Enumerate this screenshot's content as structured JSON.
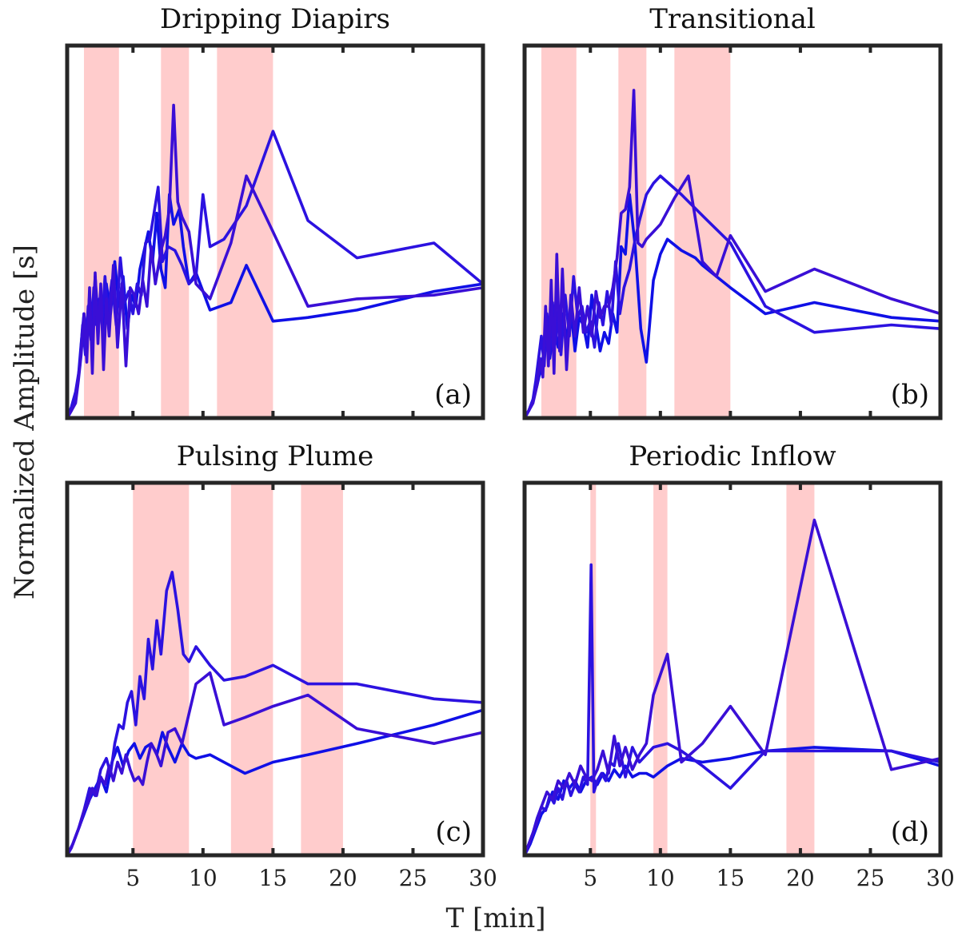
{
  "figure": {
    "ylabel": "Normalized Amplitude [s]",
    "xlabel": "T [min]"
  },
  "chart_data": [
    {
      "type": "line",
      "title": "Dripping Diapirs",
      "panel_label": "(a)",
      "xlim": [
        0.3,
        30
      ],
      "ylim": [
        0,
        1
      ],
      "xticks": [
        5,
        10,
        15,
        20,
        25,
        30
      ],
      "xticks_labeled": false,
      "yticks_labeled": false,
      "band_color": "#ffcccc",
      "line_colors": [
        "#1010e6",
        "#2c12e0",
        "#3a0fd6"
      ],
      "bands": [
        [
          1.5,
          4.0
        ],
        [
          7.0,
          9.0
        ],
        [
          11.0,
          15.0
        ]
      ],
      "series": [
        {
          "x": [
            0.3,
            0.6,
            0.9,
            1.1,
            1.3,
            1.5,
            1.7,
            1.9,
            2.1,
            2.3,
            2.5,
            2.7,
            2.9,
            3.1,
            3.4,
            3.7,
            4.0,
            4.3,
            4.6,
            4.9,
            5.2,
            5.5,
            5.8,
            6.1,
            6.4,
            6.7,
            7.0,
            7.3,
            7.6,
            7.9,
            8.3,
            8.6,
            9.0,
            9.5,
            10.5,
            12.0,
            13.1,
            15.0,
            17.5,
            21.0,
            26.5,
            30.0
          ],
          "y": [
            0.0,
            0.02,
            0.05,
            0.11,
            0.2,
            0.28,
            0.22,
            0.33,
            0.24,
            0.38,
            0.27,
            0.3,
            0.2,
            0.36,
            0.28,
            0.42,
            0.3,
            0.38,
            0.24,
            0.33,
            0.3,
            0.4,
            0.45,
            0.5,
            0.42,
            0.55,
            0.4,
            0.35,
            0.6,
            0.52,
            0.56,
            0.46,
            0.36,
            0.39,
            0.29,
            0.31,
            0.41,
            0.26,
            0.27,
            0.29,
            0.34,
            0.36
          ]
        },
        {
          "x": [
            0.3,
            0.6,
            0.9,
            1.2,
            1.4,
            1.6,
            1.8,
            2.0,
            2.2,
            2.4,
            2.6,
            2.8,
            3.0,
            3.2,
            3.5,
            3.8,
            4.1,
            4.4,
            4.7,
            5.0,
            5.3,
            5.6,
            5.9,
            6.2,
            6.5,
            6.8,
            7.1,
            7.5,
            8.0,
            8.5,
            9.0,
            9.5,
            10.0,
            10.5,
            11.5,
            13.1,
            15.0,
            17.5,
            21.0,
            26.5,
            30.0
          ],
          "y": [
            0.0,
            0.03,
            0.07,
            0.14,
            0.25,
            0.17,
            0.3,
            0.21,
            0.35,
            0.25,
            0.32,
            0.26,
            0.38,
            0.28,
            0.37,
            0.25,
            0.43,
            0.31,
            0.34,
            0.28,
            0.36,
            0.33,
            0.47,
            0.48,
            0.55,
            0.62,
            0.42,
            0.46,
            0.45,
            0.41,
            0.36,
            0.38,
            0.6,
            0.46,
            0.48,
            0.57,
            0.77,
            0.53,
            0.43,
            0.47,
            0.36
          ]
        },
        {
          "x": [
            0.3,
            0.6,
            0.9,
            1.1,
            1.3,
            1.5,
            1.7,
            1.9,
            2.1,
            2.3,
            2.5,
            2.7,
            2.9,
            3.1,
            3.3,
            3.6,
            3.9,
            4.2,
            4.5,
            4.8,
            5.1,
            5.4,
            5.7,
            6.0,
            6.3,
            6.6,
            7.0,
            7.3,
            7.6,
            7.9,
            8.2,
            8.5,
            9.0,
            9.5,
            10.5,
            12.0,
            13.1,
            15.0,
            17.5,
            21.0,
            26.5,
            30.0
          ],
          "y": [
            0.0,
            0.02,
            0.04,
            0.1,
            0.17,
            0.28,
            0.15,
            0.35,
            0.12,
            0.39,
            0.2,
            0.36,
            0.13,
            0.32,
            0.22,
            0.41,
            0.19,
            0.36,
            0.14,
            0.35,
            0.33,
            0.28,
            0.37,
            0.3,
            0.46,
            0.36,
            0.45,
            0.49,
            0.56,
            0.84,
            0.58,
            0.54,
            0.5,
            0.36,
            0.32,
            0.47,
            0.65,
            0.5,
            0.3,
            0.32,
            0.33,
            0.35
          ]
        }
      ]
    },
    {
      "type": "line",
      "title": "Transitional",
      "panel_label": "(b)",
      "xlim": [
        0.3,
        30
      ],
      "ylim": [
        0,
        1
      ],
      "xticks": [
        5,
        10,
        15,
        20,
        25,
        30
      ],
      "xticks_labeled": false,
      "yticks_labeled": false,
      "band_color": "#ffcccc",
      "line_colors": [
        "#1010e6",
        "#2c12e0",
        "#3a0fd6"
      ],
      "bands": [
        [
          1.5,
          4.0
        ],
        [
          7.0,
          9.0
        ],
        [
          11.0,
          15.0
        ]
      ],
      "series": [
        {
          "x": [
            0.3,
            0.6,
            0.9,
            1.2,
            1.5,
            1.8,
            2.1,
            2.4,
            2.7,
            3.0,
            3.3,
            3.6,
            3.9,
            4.2,
            4.5,
            4.8,
            5.1,
            5.4,
            5.7,
            6.0,
            6.3,
            6.6,
            6.9,
            7.2,
            7.5,
            7.8,
            8.2,
            8.6,
            9.0,
            9.5,
            10.0,
            10.5,
            11.5,
            12.5,
            13.0,
            14.0,
            15.0,
            17.5,
            21.0,
            26.5,
            30.0
          ],
          "y": [
            0.0,
            0.02,
            0.05,
            0.09,
            0.14,
            0.2,
            0.16,
            0.25,
            0.19,
            0.28,
            0.21,
            0.3,
            0.18,
            0.27,
            0.25,
            0.19,
            0.33,
            0.25,
            0.18,
            0.23,
            0.2,
            0.28,
            0.23,
            0.46,
            0.44,
            0.6,
            0.46,
            0.24,
            0.15,
            0.37,
            0.44,
            0.48,
            0.45,
            0.43,
            0.41,
            0.38,
            0.35,
            0.28,
            0.31,
            0.27,
            0.26
          ]
        },
        {
          "x": [
            0.3,
            0.6,
            0.9,
            1.1,
            1.3,
            1.5,
            1.7,
            1.9,
            2.1,
            2.3,
            2.5,
            2.7,
            2.9,
            3.2,
            3.5,
            3.8,
            4.1,
            4.4,
            4.7,
            5.0,
            5.3,
            5.6,
            5.9,
            6.2,
            6.5,
            6.8,
            7.1,
            7.4,
            7.8,
            8.2,
            8.5,
            9.0,
            9.5,
            10.0,
            11.5,
            13.1,
            15.0,
            17.5,
            21.0,
            26.5,
            30.0
          ],
          "y": [
            0.0,
            0.02,
            0.05,
            0.1,
            0.16,
            0.22,
            0.14,
            0.28,
            0.17,
            0.31,
            0.2,
            0.29,
            0.17,
            0.33,
            0.22,
            0.38,
            0.27,
            0.3,
            0.23,
            0.26,
            0.19,
            0.31,
            0.25,
            0.34,
            0.25,
            0.42,
            0.28,
            0.35,
            0.4,
            0.48,
            0.53,
            0.6,
            0.63,
            0.65,
            0.6,
            0.54,
            0.47,
            0.3,
            0.23,
            0.25,
            0.24
          ]
        },
        {
          "x": [
            0.3,
            0.6,
            0.9,
            1.2,
            1.4,
            1.6,
            1.8,
            2.0,
            2.2,
            2.4,
            2.6,
            2.8,
            3.0,
            3.3,
            3.6,
            3.9,
            4.2,
            4.5,
            4.8,
            5.1,
            5.4,
            5.7,
            6.0,
            6.3,
            6.6,
            6.9,
            7.2,
            7.5,
            7.8,
            8.1,
            8.4,
            8.7,
            9.0,
            9.5,
            10.0,
            11.0,
            12.0,
            13.0,
            14.0,
            15.0,
            17.5,
            21.0,
            26.5,
            30.0
          ],
          "y": [
            0.0,
            0.02,
            0.04,
            0.09,
            0.16,
            0.11,
            0.3,
            0.14,
            0.37,
            0.12,
            0.44,
            0.18,
            0.4,
            0.13,
            0.33,
            0.22,
            0.35,
            0.23,
            0.3,
            0.22,
            0.34,
            0.27,
            0.3,
            0.3,
            0.35,
            0.43,
            0.55,
            0.56,
            0.62,
            0.88,
            0.47,
            0.46,
            0.48,
            0.5,
            0.52,
            0.59,
            0.65,
            0.42,
            0.38,
            0.49,
            0.34,
            0.4,
            0.32,
            0.28
          ]
        }
      ]
    },
    {
      "type": "line",
      "title": "Pulsing Plume",
      "panel_label": "(c)",
      "xlim": [
        0.3,
        30
      ],
      "ylim": [
        0,
        1
      ],
      "xticks": [
        5,
        10,
        15,
        20,
        25,
        30
      ],
      "xticks_labeled": true,
      "yticks_labeled": false,
      "band_color": "#ffcccc",
      "line_colors": [
        "#1010e6",
        "#2c12e0",
        "#3a0fd6"
      ],
      "bands": [
        [
          5.0,
          9.0
        ],
        [
          12.0,
          15.0
        ],
        [
          17.0,
          20.0
        ]
      ],
      "series": [
        {
          "x": [
            0.3,
            0.7,
            1.1,
            1.5,
            1.9,
            2.3,
            2.7,
            3.1,
            3.5,
            3.9,
            4.3,
            4.7,
            5.1,
            5.5,
            5.9,
            6.3,
            6.7,
            7.1,
            7.5,
            8.0,
            8.5,
            9.0,
            9.5,
            10.5,
            12.0,
            13.0,
            15.0,
            17.5,
            21.0,
            26.5,
            30.0
          ],
          "y": [
            0.0,
            0.03,
            0.07,
            0.11,
            0.15,
            0.18,
            0.21,
            0.17,
            0.25,
            0.29,
            0.24,
            0.28,
            0.3,
            0.26,
            0.29,
            0.3,
            0.27,
            0.33,
            0.29,
            0.25,
            0.3,
            0.27,
            0.26,
            0.27,
            0.24,
            0.22,
            0.25,
            0.27,
            0.3,
            0.35,
            0.39
          ]
        },
        {
          "x": [
            0.3,
            0.7,
            1.1,
            1.5,
            1.9,
            2.3,
            2.7,
            3.1,
            3.4,
            3.7,
            4.0,
            4.3,
            4.6,
            4.9,
            5.2,
            5.5,
            5.8,
            6.1,
            6.4,
            6.7,
            7.0,
            7.4,
            7.8,
            8.2,
            8.6,
            9.0,
            9.5,
            10.5,
            11.5,
            13.0,
            15.0,
            17.5,
            21.0,
            26.5,
            30.0
          ],
          "y": [
            0.0,
            0.03,
            0.07,
            0.12,
            0.18,
            0.16,
            0.23,
            0.26,
            0.22,
            0.3,
            0.35,
            0.34,
            0.41,
            0.44,
            0.35,
            0.48,
            0.42,
            0.58,
            0.5,
            0.63,
            0.54,
            0.71,
            0.76,
            0.66,
            0.54,
            0.52,
            0.56,
            0.51,
            0.47,
            0.48,
            0.51,
            0.46,
            0.46,
            0.42,
            0.41
          ]
        },
        {
          "x": [
            0.3,
            0.6,
            0.9,
            1.2,
            1.5,
            1.8,
            2.1,
            2.4,
            2.7,
            3.0,
            3.3,
            3.6,
            3.9,
            4.2,
            4.5,
            4.8,
            5.1,
            5.4,
            5.7,
            6.0,
            6.3,
            6.6,
            7.0,
            7.5,
            8.0,
            8.5,
            9.0,
            9.5,
            10.5,
            11.5,
            13.0,
            15.0,
            17.5,
            21.0,
            26.5,
            30.0
          ],
          "y": [
            0.0,
            0.02,
            0.05,
            0.08,
            0.12,
            0.14,
            0.18,
            0.16,
            0.21,
            0.19,
            0.24,
            0.2,
            0.25,
            0.22,
            0.27,
            0.23,
            0.2,
            0.21,
            0.19,
            0.25,
            0.3,
            0.28,
            0.24,
            0.33,
            0.34,
            0.3,
            0.38,
            0.46,
            0.49,
            0.35,
            0.37,
            0.4,
            0.43,
            0.34,
            0.3,
            0.33
          ]
        }
      ]
    },
    {
      "type": "line",
      "title": "Periodic Inflow",
      "panel_label": "(d)",
      "xlim": [
        0.3,
        30
      ],
      "ylim": [
        0,
        1
      ],
      "xticks": [
        5,
        10,
        15,
        20,
        25,
        30
      ],
      "xticks_labeled": true,
      "yticks_labeled": false,
      "band_color": "#ffcccc",
      "line_colors": [
        "#1010e6",
        "#2c12e0",
        "#3a0fd6"
      ],
      "bands": [
        [
          5.0,
          5.4
        ],
        [
          9.5,
          10.5
        ],
        [
          19.0,
          21.0
        ]
      ],
      "series": [
        {
          "x": [
            0.3,
            0.7,
            1.1,
            1.5,
            1.9,
            2.3,
            2.7,
            3.1,
            3.5,
            3.9,
            4.3,
            4.7,
            5.1,
            5.5,
            5.9,
            6.3,
            6.7,
            7.1,
            7.5,
            8.0,
            8.5,
            9.0,
            9.5,
            10.5,
            11.5,
            13.0,
            15.0,
            17.5,
            21.0,
            26.5,
            30.0
          ],
          "y": [
            0.0,
            0.03,
            0.07,
            0.11,
            0.13,
            0.17,
            0.15,
            0.2,
            0.18,
            0.2,
            0.17,
            0.2,
            0.21,
            0.19,
            0.22,
            0.2,
            0.23,
            0.21,
            0.24,
            0.21,
            0.22,
            0.22,
            0.21,
            0.24,
            0.26,
            0.25,
            0.26,
            0.28,
            0.29,
            0.28,
            0.24
          ]
        },
        {
          "x": [
            0.3,
            0.6,
            0.9,
            1.2,
            1.5,
            1.8,
            2.1,
            2.4,
            2.7,
            3.0,
            3.3,
            3.6,
            3.9,
            4.2,
            4.5,
            4.8,
            5.05,
            5.25,
            5.5,
            5.8,
            6.1,
            6.4,
            6.7,
            7.0,
            7.5,
            8.0,
            8.5,
            9.0,
            9.5,
            10.5,
            11.5,
            13.0,
            15.0,
            17.5,
            21.0,
            26.5,
            30.0
          ],
          "y": [
            0.0,
            0.03,
            0.06,
            0.1,
            0.13,
            0.12,
            0.16,
            0.14,
            0.18,
            0.15,
            0.2,
            0.16,
            0.19,
            0.17,
            0.21,
            0.19,
            0.78,
            0.17,
            0.2,
            0.22,
            0.2,
            0.25,
            0.24,
            0.3,
            0.21,
            0.29,
            0.25,
            0.27,
            0.29,
            0.3,
            0.28,
            0.24,
            0.18,
            0.28,
            0.28,
            0.28,
            0.25
          ]
        },
        {
          "x": [
            0.3,
            0.7,
            1.1,
            1.5,
            1.9,
            2.3,
            2.7,
            3.1,
            3.5,
            3.9,
            4.3,
            4.7,
            5.1,
            5.5,
            5.9,
            6.3,
            6.7,
            7.1,
            7.5,
            8.0,
            8.5,
            9.0,
            9.5,
            10.5,
            11.5,
            13.0,
            15.0,
            17.5,
            21.0,
            26.5,
            30.0
          ],
          "y": [
            0.0,
            0.04,
            0.08,
            0.13,
            0.17,
            0.15,
            0.2,
            0.18,
            0.22,
            0.19,
            0.24,
            0.21,
            0.2,
            0.23,
            0.28,
            0.22,
            0.32,
            0.24,
            0.29,
            0.23,
            0.27,
            0.3,
            0.43,
            0.54,
            0.25,
            0.3,
            0.4,
            0.27,
            0.9,
            0.23,
            0.26
          ]
        }
      ]
    }
  ]
}
